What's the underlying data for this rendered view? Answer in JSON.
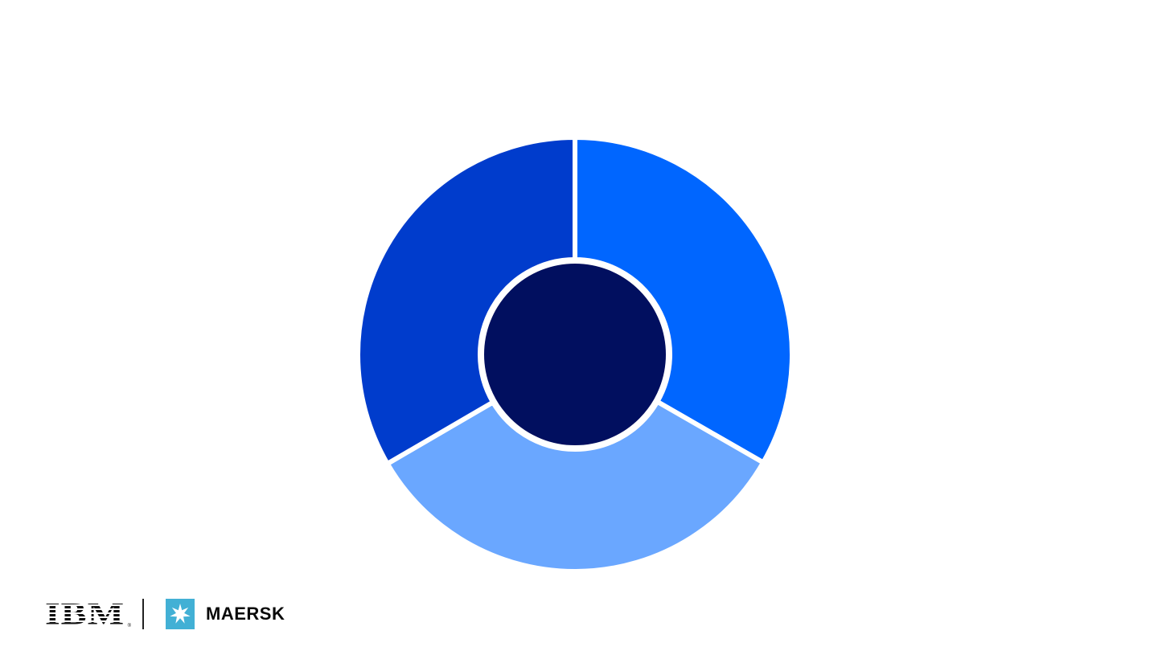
{
  "diagram": {
    "type": "donut",
    "segments": [
      {
        "name": "segment-right",
        "fraction": 0.333,
        "color": "#0066ff"
      },
      {
        "name": "segment-bottom",
        "fraction": 0.333,
        "color": "#6aa7ff"
      },
      {
        "name": "segment-left",
        "fraction": 0.334,
        "color": "#003ccc"
      }
    ],
    "center_color": "#010f5f",
    "separator_color": "#ffffff"
  },
  "footer": {
    "ibm_logo_text": "IBM",
    "ibm_registered": "®",
    "maersk_logo_text": "MAERSK",
    "maersk_brand_color": "#42b0d5",
    "maersk_icon": "seven-pointed-star-icon"
  }
}
